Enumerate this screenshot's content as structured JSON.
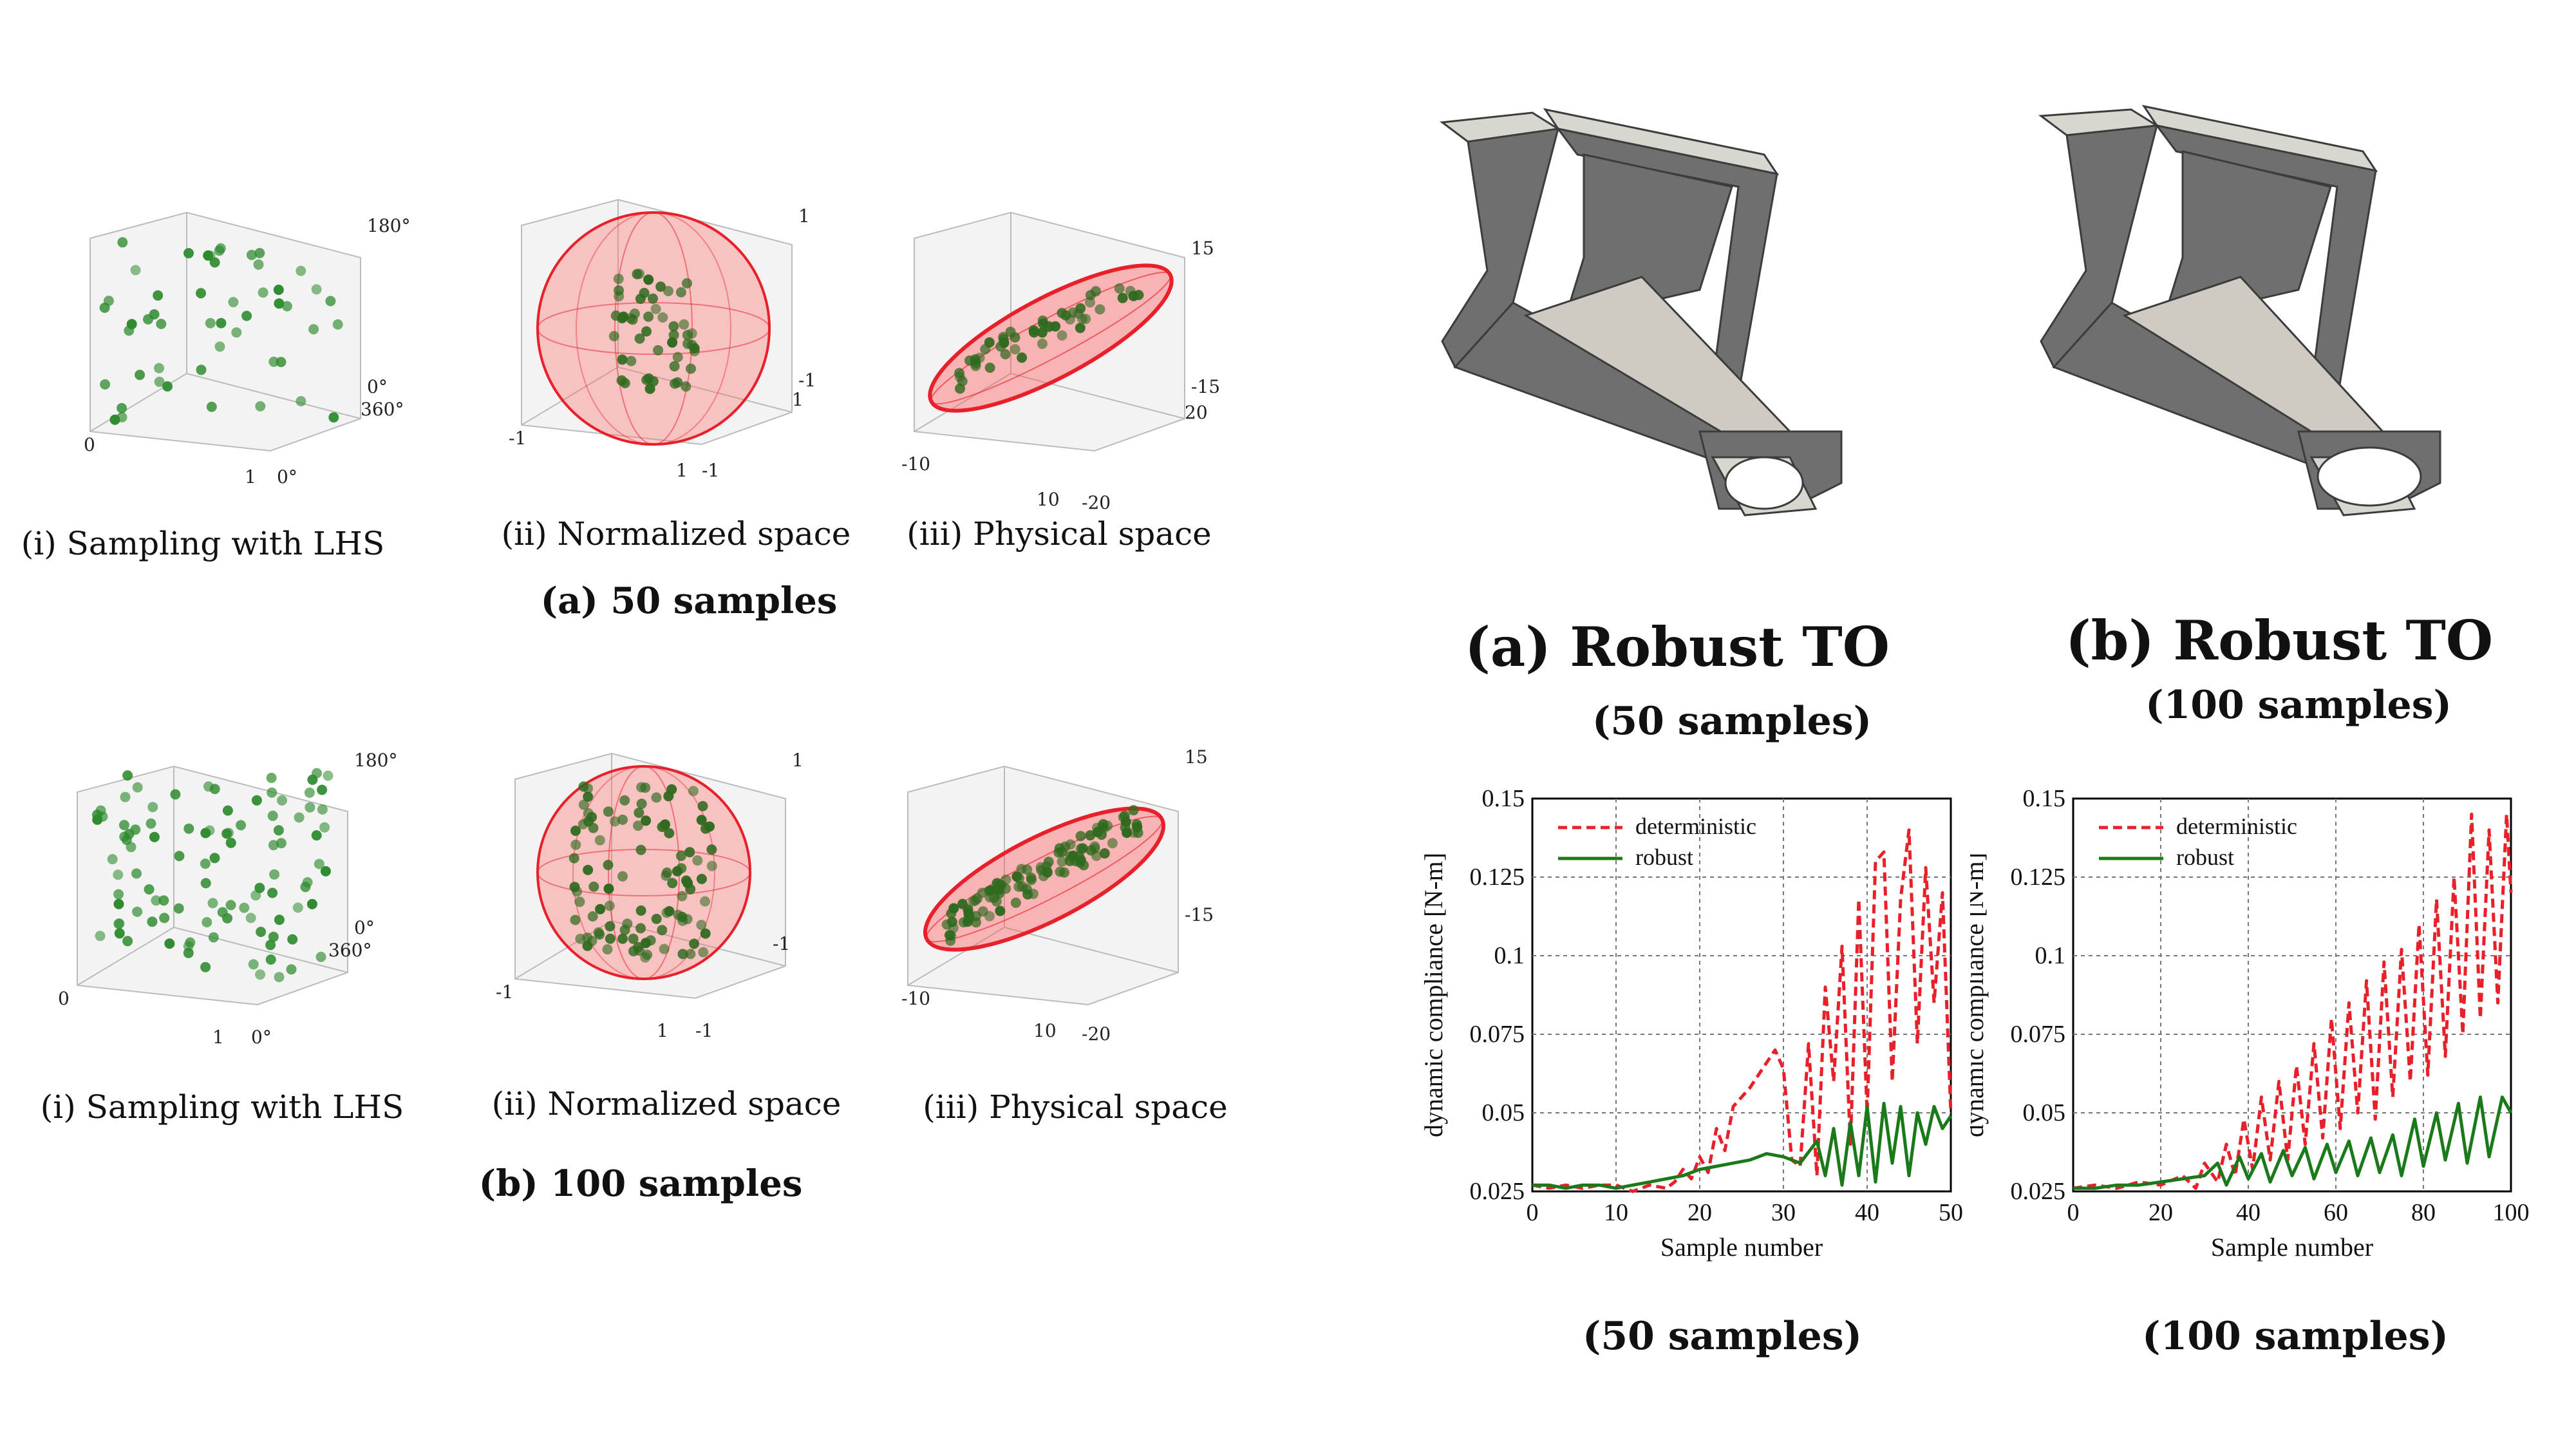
{
  "left_panel": {
    "row_a": {
      "caption_i": "(i) Sampling with LHS",
      "caption_ii": "(ii) Normalized space",
      "caption_iii": "(iii) Physical space",
      "subcaption": "(a) 50 samples",
      "ticks_lhs": {
        "z_top": "180°",
        "z_bottom": "0°",
        "y_right": "360°",
        "x_left": "0",
        "x_right": "1",
        "y_bottom": "0°"
      },
      "ticks_norm": {
        "z_top": "1",
        "z_bottom": "-1",
        "y_right": "1",
        "x_left": "-1",
        "x_right": "1",
        "y_bottom": "-1"
      },
      "ticks_phys": {
        "z_top": "15",
        "z_bottom": "-15",
        "y_right": "20",
        "x_left": "-10",
        "x_right": "10",
        "y_bottom": "-20"
      }
    },
    "row_b": {
      "caption_i": "(i) Sampling with LHS",
      "caption_ii": "(ii) Normalized space",
      "caption_iii": "(iii) Physical space",
      "subcaption": "(b) 100 samples",
      "ticks_lhs": {
        "z_top": "180°",
        "z_bottom": "0°",
        "y_right": "360°",
        "x_left": "0",
        "x_right": "1",
        "y_bottom": "0°"
      },
      "ticks_norm": {
        "z_top": "1",
        "z_bottom": "-1",
        "x_left": "-1",
        "x_right": "1",
        "y_bottom": "-1"
      },
      "ticks_phys": {
        "z_top": "15",
        "z_bottom": "-15",
        "x_left": "-10",
        "x_right": "10",
        "y_bottom": "-20"
      }
    }
  },
  "right_panel": {
    "robust_a": {
      "title": "(a) Robust TO",
      "subtitle": "(50 samples)"
    },
    "robust_b": {
      "title": "(b) Robust TO",
      "subtitle": "(100 samples)"
    },
    "chart_caption_a": "(50 samples)",
    "chart_caption_b": "(100 samples)"
  },
  "colors": {
    "sample_point": "#2e8b2e",
    "ellipsoid": "#e8202a",
    "deterministic": "#e8202a",
    "robust": "#1a7a1a",
    "structure": "#6f6f6f"
  },
  "chart_data": [
    {
      "type": "line",
      "title": "",
      "xlabel": "Sample number",
      "ylabel": "dynamic compliance [N-m]",
      "xlim": [
        0,
        50
      ],
      "ylim": [
        0.025,
        0.15
      ],
      "xticks": [
        "0",
        "10",
        "20",
        "30",
        "40",
        "50"
      ],
      "yticks": [
        "0.025",
        "0.05",
        "0.075",
        "0.1",
        "0.125",
        "0.15"
      ],
      "grid": true,
      "legend_position": "top-left",
      "series": [
        {
          "name": "deterministic",
          "style": "dashed",
          "x": [
            0,
            2,
            4,
            6,
            8,
            10,
            12,
            14,
            16,
            17,
            18,
            19,
            20,
            21,
            22,
            23,
            24,
            25,
            26,
            27,
            28,
            29,
            30,
            31,
            32,
            33,
            34,
            35,
            36,
            37,
            38,
            39,
            40,
            41,
            42,
            43,
            44,
            45,
            46,
            47,
            48,
            49,
            50
          ],
          "y": [
            0.027,
            0.026,
            0.027,
            0.026,
            0.027,
            0.027,
            0.025,
            0.027,
            0.026,
            0.028,
            0.032,
            0.029,
            0.036,
            0.031,
            0.045,
            0.038,
            0.052,
            0.055,
            0.058,
            0.062,
            0.066,
            0.07,
            0.064,
            0.035,
            0.033,
            0.072,
            0.03,
            0.09,
            0.06,
            0.103,
            0.04,
            0.118,
            0.05,
            0.13,
            0.133,
            0.06,
            0.118,
            0.14,
            0.072,
            0.128,
            0.085,
            0.12,
            0.05
          ]
        },
        {
          "name": "robust",
          "style": "solid",
          "x": [
            0,
            2,
            4,
            6,
            8,
            10,
            12,
            14,
            16,
            18,
            20,
            22,
            24,
            26,
            28,
            30,
            32,
            34,
            35,
            36,
            37,
            38,
            39,
            40,
            41,
            42,
            43,
            44,
            45,
            46,
            47,
            48,
            49,
            50
          ],
          "y": [
            0.027,
            0.027,
            0.026,
            0.027,
            0.027,
            0.026,
            0.027,
            0.028,
            0.029,
            0.03,
            0.032,
            0.033,
            0.034,
            0.035,
            0.037,
            0.036,
            0.034,
            0.041,
            0.03,
            0.045,
            0.027,
            0.047,
            0.03,
            0.052,
            0.028,
            0.053,
            0.034,
            0.052,
            0.03,
            0.05,
            0.04,
            0.052,
            0.045,
            0.049
          ]
        }
      ]
    },
    {
      "type": "line",
      "title": "",
      "xlabel": "Sample number",
      "ylabel": "dynamic compliance [N-m]",
      "xlim": [
        0,
        100
      ],
      "ylim": [
        0.025,
        0.15
      ],
      "xticks": [
        "0",
        "20",
        "40",
        "60",
        "80",
        "100"
      ],
      "yticks": [
        "0.025",
        "0.05",
        "0.075",
        "0.1",
        "0.125",
        "0.15"
      ],
      "grid": true,
      "legend_position": "top-left",
      "series": [
        {
          "name": "deterministic",
          "style": "dashed",
          "x": [
            0,
            5,
            10,
            15,
            20,
            25,
            28,
            30,
            33,
            35,
            37,
            39,
            41,
            43,
            45,
            47,
            49,
            51,
            53,
            55,
            57,
            59,
            61,
            63,
            65,
            67,
            69,
            71,
            73,
            75,
            77,
            79,
            81,
            83,
            85,
            87,
            89,
            91,
            93,
            95,
            97,
            99,
            100
          ],
          "y": [
            0.026,
            0.027,
            0.026,
            0.028,
            0.027,
            0.03,
            0.026,
            0.034,
            0.028,
            0.04,
            0.03,
            0.048,
            0.032,
            0.055,
            0.035,
            0.06,
            0.035,
            0.065,
            0.04,
            0.072,
            0.042,
            0.08,
            0.045,
            0.085,
            0.05,
            0.092,
            0.048,
            0.098,
            0.055,
            0.102,
            0.06,
            0.11,
            0.062,
            0.118,
            0.068,
            0.125,
            0.075,
            0.145,
            0.08,
            0.14,
            0.085,
            0.145,
            0.12
          ]
        },
        {
          "name": "robust",
          "style": "solid",
          "x": [
            0,
            5,
            10,
            15,
            20,
            25,
            30,
            33,
            35,
            38,
            40,
            43,
            45,
            48,
            50,
            53,
            55,
            58,
            60,
            63,
            65,
            68,
            70,
            73,
            75,
            78,
            80,
            83,
            85,
            88,
            90,
            93,
            95,
            98,
            100
          ],
          "y": [
            0.026,
            0.026,
            0.027,
            0.027,
            0.028,
            0.029,
            0.03,
            0.034,
            0.027,
            0.036,
            0.029,
            0.037,
            0.028,
            0.038,
            0.03,
            0.039,
            0.029,
            0.04,
            0.031,
            0.041,
            0.03,
            0.042,
            0.031,
            0.043,
            0.03,
            0.048,
            0.033,
            0.05,
            0.035,
            0.053,
            0.034,
            0.055,
            0.036,
            0.055,
            0.05
          ]
        }
      ]
    }
  ]
}
